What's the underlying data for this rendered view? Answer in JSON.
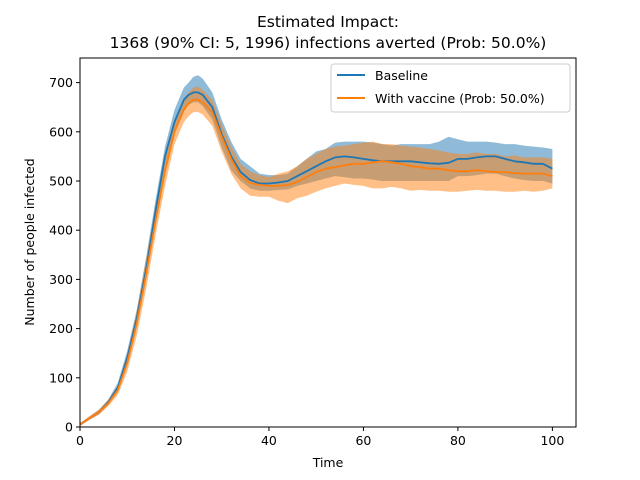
{
  "chart_data": {
    "type": "line",
    "title_line1": "Estimated Impact:",
    "title_line2": "1368 (90% CI: 5, 1996) infections averted (Prob: 50.0%)",
    "xlabel": "Time",
    "ylabel": "Number of people infected",
    "xlim": [
      0,
      105
    ],
    "ylim": [
      0,
      750
    ],
    "xticks": [
      0,
      20,
      40,
      60,
      80,
      100
    ],
    "yticks": [
      0,
      100,
      200,
      300,
      400,
      500,
      600,
      700
    ],
    "legend_position": "upper right",
    "colors": {
      "baseline": "#1f77b4",
      "vaccine": "#ff7f0e"
    },
    "x": [
      0,
      2,
      4,
      6,
      8,
      10,
      12,
      14,
      16,
      18,
      20,
      22,
      23,
      24,
      25,
      26,
      28,
      30,
      32,
      34,
      36,
      38,
      40,
      42,
      44,
      46,
      48,
      50,
      52,
      54,
      56,
      58,
      60,
      62,
      64,
      66,
      68,
      70,
      72,
      74,
      76,
      78,
      80,
      82,
      84,
      86,
      88,
      90,
      92,
      94,
      96,
      98,
      100
    ],
    "series": [
      {
        "name": "Baseline",
        "color": "#1f77b4",
        "values": [
          5,
          18,
          30,
          50,
          80,
          140,
          220,
          320,
          440,
          550,
          620,
          665,
          675,
          680,
          680,
          675,
          650,
          595,
          550,
          518,
          502,
          495,
          495,
          497,
          500,
          510,
          520,
          530,
          540,
          548,
          550,
          548,
          545,
          542,
          540,
          540,
          540,
          540,
          538,
          536,
          535,
          537,
          545,
          545,
          548,
          550,
          550,
          545,
          540,
          538,
          535,
          535,
          525
        ],
        "lower": [
          3,
          15,
          26,
          45,
          72,
          128,
          205,
          300,
          420,
          530,
          600,
          645,
          655,
          660,
          660,
          652,
          625,
          568,
          522,
          500,
          485,
          480,
          480,
          482,
          483,
          490,
          495,
          500,
          505,
          510,
          508,
          505,
          505,
          503,
          500,
          500,
          500,
          500,
          500,
          500,
          500,
          500,
          510,
          510,
          512,
          515,
          515,
          510,
          505,
          502,
          500,
          500,
          495
        ],
        "upper": [
          8,
          21,
          35,
          56,
          90,
          155,
          238,
          345,
          462,
          570,
          645,
          690,
          700,
          712,
          715,
          708,
          680,
          625,
          580,
          545,
          530,
          515,
          512,
          512,
          515,
          530,
          545,
          560,
          565,
          578,
          580,
          580,
          580,
          578,
          575,
          572,
          575,
          575,
          575,
          575,
          580,
          590,
          585,
          580,
          580,
          580,
          578,
          575,
          575,
          572,
          570,
          568,
          565
        ]
      },
      {
        "name": "With vaccine (Prob: 50.0%)",
        "color": "#ff7f0e",
        "values": [
          5,
          18,
          30,
          48,
          75,
          130,
          210,
          310,
          420,
          520,
          600,
          645,
          658,
          665,
          665,
          660,
          640,
          590,
          545,
          510,
          496,
          492,
          490,
          490,
          492,
          498,
          508,
          518,
          525,
          528,
          532,
          535,
          535,
          538,
          540,
          538,
          535,
          530,
          528,
          525,
          525,
          522,
          520,
          520,
          522,
          520,
          518,
          518,
          516,
          515,
          515,
          515,
          510
        ],
        "lower": [
          2,
          14,
          25,
          42,
          65,
          112,
          185,
          280,
          390,
          490,
          575,
          620,
          632,
          640,
          640,
          635,
          612,
          560,
          515,
          485,
          470,
          468,
          468,
          460,
          455,
          465,
          470,
          478,
          485,
          490,
          495,
          492,
          490,
          485,
          485,
          488,
          485,
          480,
          482,
          480,
          480,
          478,
          478,
          480,
          482,
          480,
          480,
          478,
          478,
          480,
          478,
          480,
          485
        ],
        "upper": [
          8,
          22,
          35,
          55,
          85,
          148,
          235,
          340,
          450,
          550,
          625,
          668,
          680,
          690,
          692,
          685,
          665,
          615,
          570,
          535,
          520,
          512,
          508,
          515,
          520,
          530,
          545,
          555,
          565,
          570,
          572,
          575,
          578,
          580,
          575,
          575,
          572,
          570,
          568,
          565,
          562,
          558,
          555,
          555,
          558,
          555,
          555,
          550,
          552,
          548,
          548,
          548,
          545
        ]
      }
    ]
  }
}
